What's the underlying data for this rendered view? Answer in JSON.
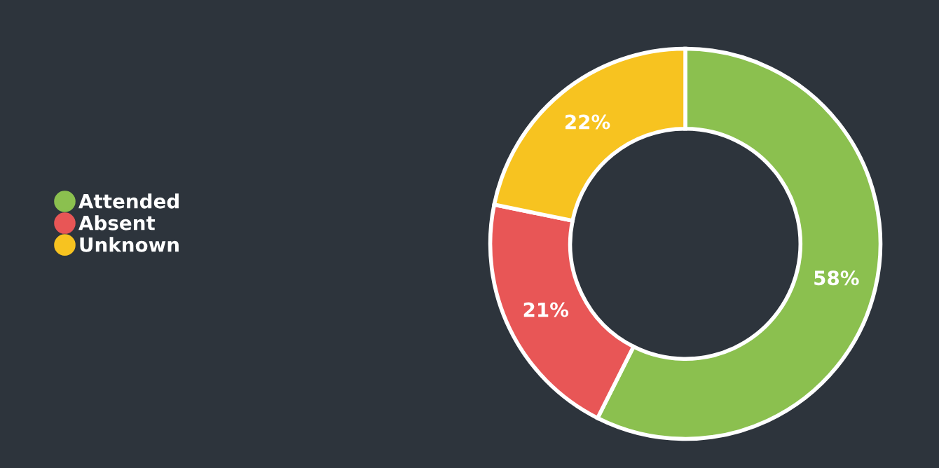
{
  "chart_data": {
    "type": "donut",
    "categories": [
      "Attended",
      "Absent",
      "Unknown"
    ],
    "values": [
      58,
      21,
      22
    ],
    "colors": [
      "#8bc04f",
      "#e85656",
      "#f7c320"
    ],
    "value_labels": [
      "58%",
      "21%",
      "22%"
    ],
    "legend": "left"
  }
}
